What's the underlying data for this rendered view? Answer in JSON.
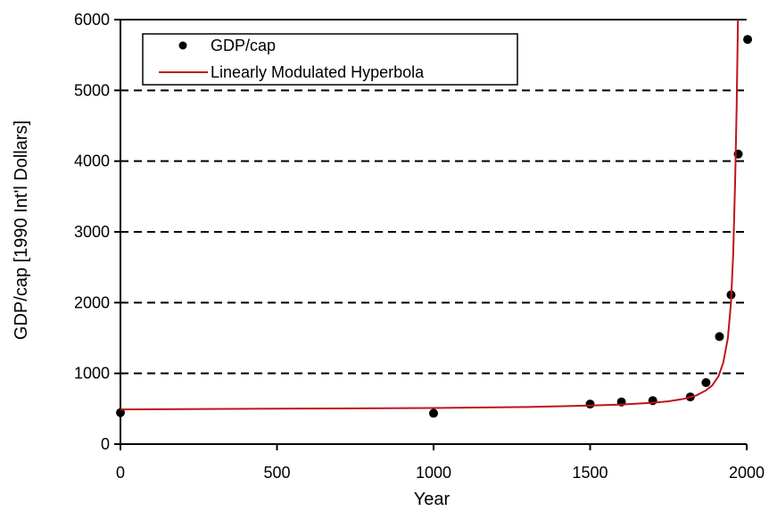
{
  "chart_data": {
    "type": "scatter",
    "xlabel": "Year",
    "ylabel": "GDP/cap [1990 Int'l Dollars]",
    "xlim": [
      0,
      2000
    ],
    "ylim": [
      0,
      6000
    ],
    "x_ticks": [
      0,
      500,
      1000,
      1500,
      2000
    ],
    "x_tick_labels": [
      "0",
      "500",
      "1000",
      "1500",
      "2000"
    ],
    "y_ticks": [
      0,
      1000,
      2000,
      3000,
      4000,
      5000,
      6000
    ],
    "y_tick_labels": [
      "0",
      "1000",
      "2000",
      "3000",
      "4000",
      "5000",
      "6000"
    ],
    "grid": "horizontal dashed",
    "legend_position": "top-left",
    "series": [
      {
        "name": "GDP/cap",
        "kind": "markers",
        "color": "#000000",
        "points": [
          {
            "x": 0,
            "y": 445
          },
          {
            "x": 1000,
            "y": 436
          },
          {
            "x": 1500,
            "y": 566
          },
          {
            "x": 1600,
            "y": 596
          },
          {
            "x": 1700,
            "y": 615
          },
          {
            "x": 1820,
            "y": 667
          },
          {
            "x": 1870,
            "y": 870
          },
          {
            "x": 1913,
            "y": 1520
          },
          {
            "x": 1950,
            "y": 2110
          },
          {
            "x": 1973,
            "y": 4100
          },
          {
            "x": 2003,
            "y": 5720
          }
        ]
      },
      {
        "name": "Linearly Modulated Hyperbola",
        "kind": "line",
        "color": "#c0141c",
        "points": [
          {
            "x": 0,
            "y": 490
          },
          {
            "x": 500,
            "y": 500
          },
          {
            "x": 1000,
            "y": 510
          },
          {
            "x": 1300,
            "y": 525
          },
          {
            "x": 1500,
            "y": 545
          },
          {
            "x": 1600,
            "y": 560
          },
          {
            "x": 1700,
            "y": 585
          },
          {
            "x": 1750,
            "y": 605
          },
          {
            "x": 1800,
            "y": 640
          },
          {
            "x": 1840,
            "y": 690
          },
          {
            "x": 1870,
            "y": 760
          },
          {
            "x": 1890,
            "y": 830
          },
          {
            "x": 1910,
            "y": 960
          },
          {
            "x": 1925,
            "y": 1150
          },
          {
            "x": 1940,
            "y": 1500
          },
          {
            "x": 1950,
            "y": 2000
          },
          {
            "x": 1957,
            "y": 2700
          },
          {
            "x": 1963,
            "y": 3700
          },
          {
            "x": 1968,
            "y": 4800
          },
          {
            "x": 1972,
            "y": 6000
          }
        ]
      }
    ]
  }
}
